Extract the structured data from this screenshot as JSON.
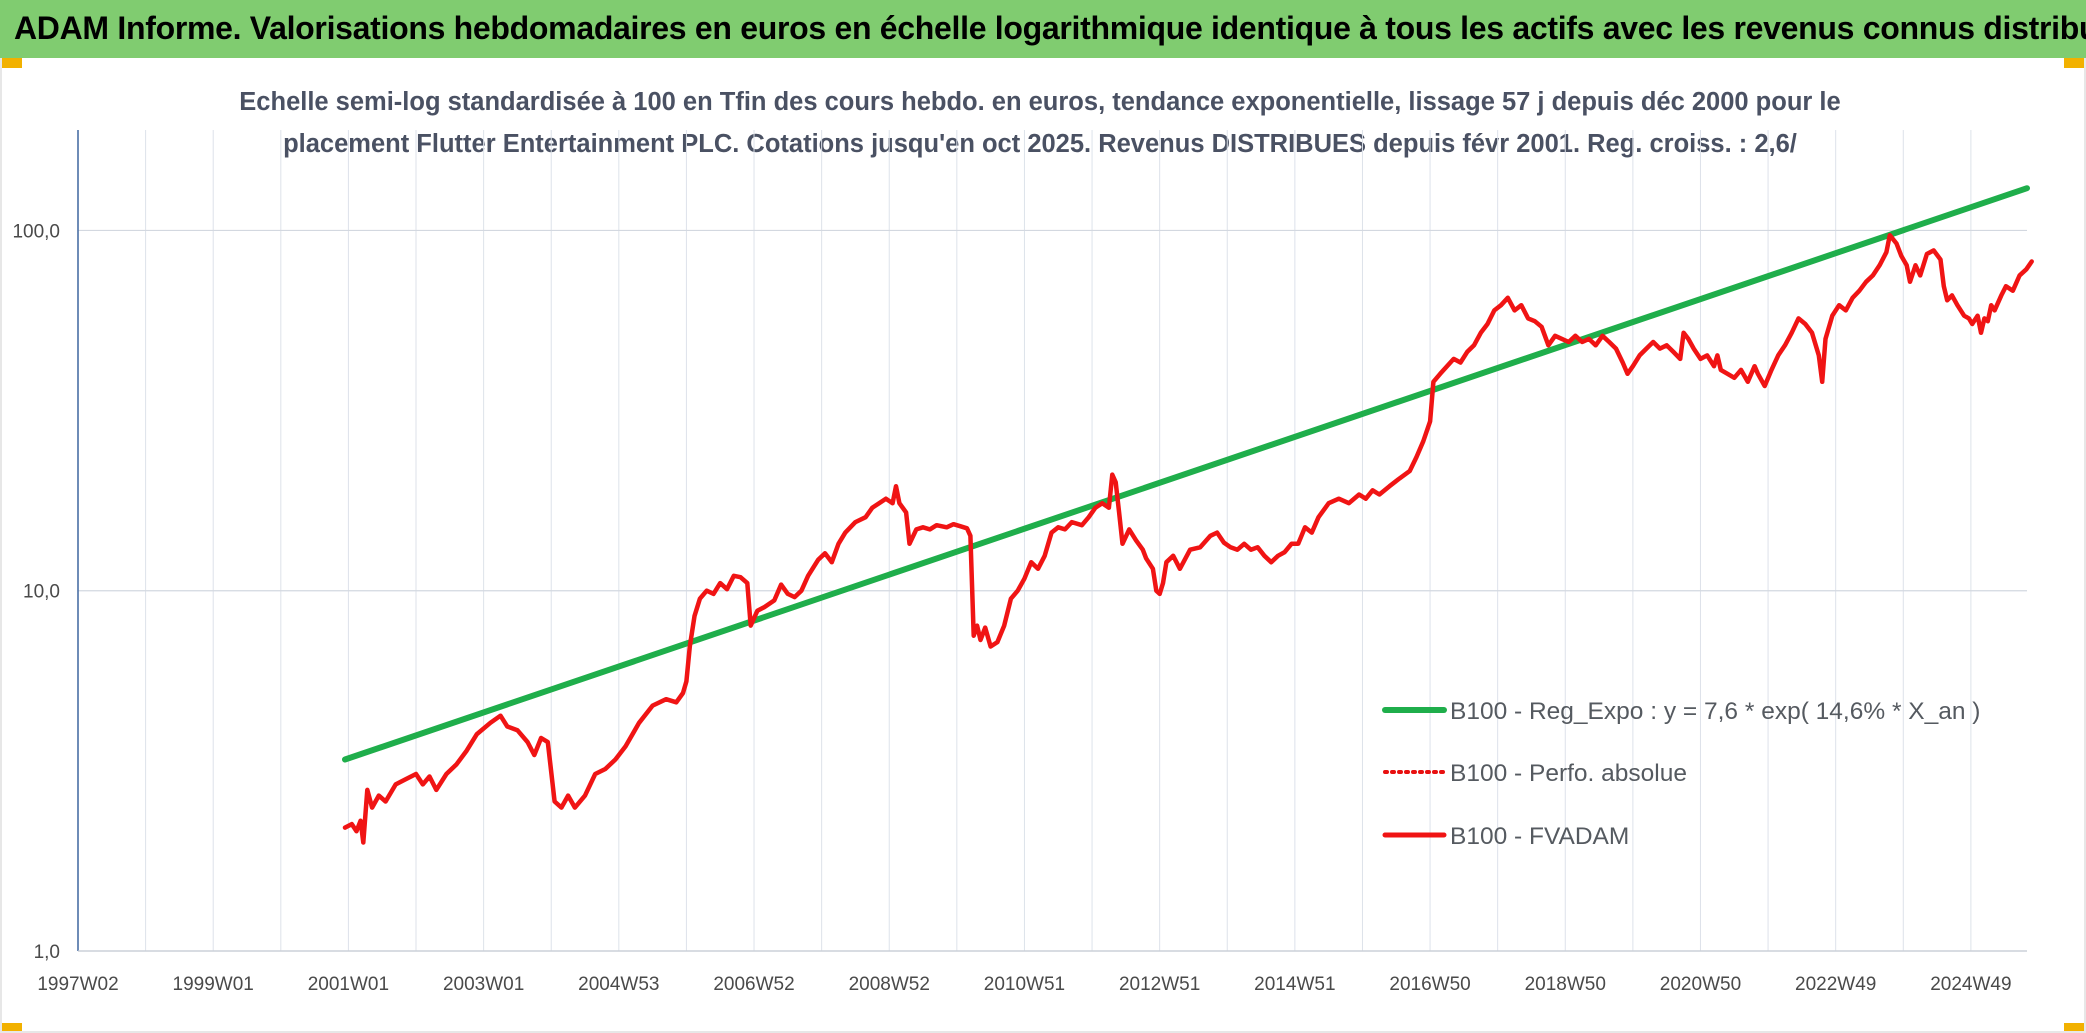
{
  "header": {
    "title": "ADAM Informe. Valorisations hebdomadaires en euros en échelle logarithmique identique à tous les actifs avec les revenus connus distribués"
  },
  "chart_data": {
    "type": "line",
    "subtitle_line1": "Echelle semi-log standardisée à 100 en Tfin des cours hebdo. en euros, tendance exponentielle, lissage 57 j depuis déc 2000 pour le",
    "subtitle_line2": "placement Flutter Entertainment PLC. Cotations jusqu'en oct 2025. Revenus DISTRIBUES depuis févr 2001. Reg. croiss. : 2,6/",
    "y_scale": "log",
    "ylim": [
      1,
      190
    ],
    "xlim": [
      1997.0,
      2025.83
    ],
    "y_ticks": [
      {
        "value": 1,
        "label": "1,0"
      },
      {
        "value": 10,
        "label": "10,0"
      },
      {
        "value": 100,
        "label": "100,0"
      }
    ],
    "x_ticks": [
      {
        "value": 1997.0,
        "label": "1997W02"
      },
      {
        "value": 1999.0,
        "label": "1999W01"
      },
      {
        "value": 2001.0,
        "label": "2001W01"
      },
      {
        "value": 2003.0,
        "label": "2003W01"
      },
      {
        "value": 2005.0,
        "label": "2004W53"
      },
      {
        "value": 2007.0,
        "label": "2006W52"
      },
      {
        "value": 2009.0,
        "label": "2008W52"
      },
      {
        "value": 2011.0,
        "label": "2010W51"
      },
      {
        "value": 2013.0,
        "label": "2012W51"
      },
      {
        "value": 2015.0,
        "label": "2014W51"
      },
      {
        "value": 2017.0,
        "label": "2016W50"
      },
      {
        "value": 2019.0,
        "label": "2018W50"
      },
      {
        "value": 2021.0,
        "label": "2020W50"
      },
      {
        "value": 2023.0,
        "label": "2022W49"
      },
      {
        "value": 2025.0,
        "label": "2024W49"
      }
    ],
    "grid": true,
    "legend_position": "bottom-right",
    "series": [
      {
        "name": "B100 - Reg_Expo : y = 7,6 * exp( 14,6% * X_an )",
        "color": "#1fae4b",
        "style": "solid",
        "points": [
          [
            2000.95,
            3.4
          ],
          [
            2025.83,
            131
          ]
        ]
      },
      {
        "name": "B100 - Perfo. absolue",
        "color": "#e81010",
        "style": "dotted",
        "points": []
      },
      {
        "name": "B100 - FVADAM",
        "color": "#f01414",
        "style": "solid",
        "points": [
          [
            2000.95,
            2.2
          ],
          [
            2001.05,
            2.25
          ],
          [
            2001.12,
            2.15
          ],
          [
            2001.18,
            2.3
          ],
          [
            2001.22,
            2.0
          ],
          [
            2001.28,
            2.8
          ],
          [
            2001.35,
            2.5
          ],
          [
            2001.45,
            2.7
          ],
          [
            2001.55,
            2.6
          ],
          [
            2001.7,
            2.9
          ],
          [
            2001.85,
            3.0
          ],
          [
            2002.0,
            3.1
          ],
          [
            2002.1,
            2.9
          ],
          [
            2002.2,
            3.05
          ],
          [
            2002.3,
            2.8
          ],
          [
            2002.45,
            3.1
          ],
          [
            2002.6,
            3.3
          ],
          [
            2002.75,
            3.6
          ],
          [
            2002.9,
            4.0
          ],
          [
            2003.1,
            4.3
          ],
          [
            2003.25,
            4.5
          ],
          [
            2003.35,
            4.2
          ],
          [
            2003.5,
            4.1
          ],
          [
            2003.65,
            3.8
          ],
          [
            2003.75,
            3.5
          ],
          [
            2003.85,
            3.9
          ],
          [
            2003.95,
            3.8
          ],
          [
            2004.05,
            2.6
          ],
          [
            2004.15,
            2.5
          ],
          [
            2004.25,
            2.7
          ],
          [
            2004.35,
            2.5
          ],
          [
            2004.5,
            2.7
          ],
          [
            2004.65,
            3.1
          ],
          [
            2004.8,
            3.2
          ],
          [
            2004.95,
            3.4
          ],
          [
            2005.1,
            3.7
          ],
          [
            2005.3,
            4.3
          ],
          [
            2005.5,
            4.8
          ],
          [
            2005.7,
            5.0
          ],
          [
            2005.85,
            4.9
          ],
          [
            2005.95,
            5.2
          ],
          [
            2006.0,
            5.6
          ],
          [
            2006.05,
            7.0
          ],
          [
            2006.12,
            8.5
          ],
          [
            2006.2,
            9.5
          ],
          [
            2006.3,
            10.0
          ],
          [
            2006.4,
            9.8
          ],
          [
            2006.5,
            10.5
          ],
          [
            2006.6,
            10.1
          ],
          [
            2006.7,
            11.0
          ],
          [
            2006.8,
            10.9
          ],
          [
            2006.9,
            10.5
          ],
          [
            2006.95,
            8.0
          ],
          [
            2007.05,
            8.8
          ],
          [
            2007.15,
            9.0
          ],
          [
            2007.3,
            9.4
          ],
          [
            2007.4,
            10.4
          ],
          [
            2007.5,
            9.8
          ],
          [
            2007.6,
            9.6
          ],
          [
            2007.7,
            10.0
          ],
          [
            2007.8,
            11.0
          ],
          [
            2007.95,
            12.2
          ],
          [
            2008.05,
            12.7
          ],
          [
            2008.15,
            12.0
          ],
          [
            2008.25,
            13.5
          ],
          [
            2008.35,
            14.5
          ],
          [
            2008.5,
            15.5
          ],
          [
            2008.65,
            16.0
          ],
          [
            2008.75,
            17.0
          ],
          [
            2008.85,
            17.5
          ],
          [
            2008.95,
            18.0
          ],
          [
            2009.05,
            17.5
          ],
          [
            2009.1,
            19.5
          ],
          [
            2009.15,
            17.5
          ],
          [
            2009.25,
            16.5
          ],
          [
            2009.3,
            13.5
          ],
          [
            2009.4,
            14.8
          ],
          [
            2009.5,
            15.0
          ],
          [
            2009.6,
            14.8
          ],
          [
            2009.7,
            15.2
          ],
          [
            2009.85,
            15.0
          ],
          [
            2009.95,
            15.3
          ],
          [
            2010.05,
            15.1
          ],
          [
            2010.15,
            14.9
          ],
          [
            2010.2,
            14.2
          ],
          [
            2010.25,
            7.5
          ],
          [
            2010.3,
            8.0
          ],
          [
            2010.35,
            7.3
          ],
          [
            2010.42,
            7.9
          ],
          [
            2010.5,
            7.0
          ],
          [
            2010.6,
            7.2
          ],
          [
            2010.7,
            8.0
          ],
          [
            2010.8,
            9.5
          ],
          [
            2010.9,
            10.0
          ],
          [
            2011.0,
            10.8
          ],
          [
            2011.1,
            12.0
          ],
          [
            2011.2,
            11.5
          ],
          [
            2011.3,
            12.5
          ],
          [
            2011.4,
            14.5
          ],
          [
            2011.5,
            15.0
          ],
          [
            2011.6,
            14.8
          ],
          [
            2011.7,
            15.5
          ],
          [
            2011.85,
            15.2
          ],
          [
            2011.95,
            16.0
          ],
          [
            2012.05,
            17.0
          ],
          [
            2012.15,
            17.5
          ],
          [
            2012.25,
            17.0
          ],
          [
            2012.3,
            21.0
          ],
          [
            2012.35,
            20.0
          ],
          [
            2012.4,
            16.5
          ],
          [
            2012.45,
            13.5
          ],
          [
            2012.55,
            14.8
          ],
          [
            2012.65,
            13.8
          ],
          [
            2012.75,
            13.0
          ],
          [
            2012.8,
            12.3
          ],
          [
            2012.9,
            11.5
          ],
          [
            2012.95,
            10.0
          ],
          [
            2013.0,
            9.8
          ],
          [
            2013.05,
            10.5
          ],
          [
            2013.1,
            12.0
          ],
          [
            2013.2,
            12.5
          ],
          [
            2013.3,
            11.5
          ],
          [
            2013.45,
            13.0
          ],
          [
            2013.6,
            13.2
          ],
          [
            2013.75,
            14.2
          ],
          [
            2013.85,
            14.5
          ],
          [
            2013.95,
            13.6
          ],
          [
            2014.05,
            13.2
          ],
          [
            2014.15,
            13.0
          ],
          [
            2014.25,
            13.5
          ],
          [
            2014.35,
            13.0
          ],
          [
            2014.45,
            13.2
          ],
          [
            2014.55,
            12.5
          ],
          [
            2014.65,
            12.0
          ],
          [
            2014.75,
            12.5
          ],
          [
            2014.85,
            12.8
          ],
          [
            2014.95,
            13.5
          ],
          [
            2015.05,
            13.5
          ],
          [
            2015.15,
            15.0
          ],
          [
            2015.25,
            14.5
          ],
          [
            2015.35,
            16.0
          ],
          [
            2015.5,
            17.5
          ],
          [
            2015.65,
            18.0
          ],
          [
            2015.8,
            17.5
          ],
          [
            2015.95,
            18.5
          ],
          [
            2016.05,
            18.0
          ],
          [
            2016.15,
            19.0
          ],
          [
            2016.25,
            18.5
          ],
          [
            2016.4,
            19.5
          ],
          [
            2016.55,
            20.5
          ],
          [
            2016.7,
            21.5
          ],
          [
            2016.8,
            23.5
          ],
          [
            2016.9,
            26.0
          ],
          [
            2017.0,
            29.5
          ],
          [
            2017.05,
            38.0
          ],
          [
            2017.15,
            40.0
          ],
          [
            2017.25,
            42.0
          ],
          [
            2017.35,
            44.0
          ],
          [
            2017.45,
            43.0
          ],
          [
            2017.55,
            46.0
          ],
          [
            2017.65,
            48.0
          ],
          [
            2017.75,
            52.0
          ],
          [
            2017.85,
            55.0
          ],
          [
            2017.95,
            60.0
          ],
          [
            2018.05,
            62.0
          ],
          [
            2018.15,
            65.0
          ],
          [
            2018.25,
            60.0
          ],
          [
            2018.35,
            62.0
          ],
          [
            2018.45,
            57.0
          ],
          [
            2018.55,
            56.0
          ],
          [
            2018.65,
            54.0
          ],
          [
            2018.75,
            48.0
          ],
          [
            2018.85,
            51.0
          ],
          [
            2018.95,
            50.0
          ],
          [
            2019.05,
            49.0
          ],
          [
            2019.15,
            51.0
          ],
          [
            2019.25,
            49.0
          ],
          [
            2019.35,
            50.0
          ],
          [
            2019.45,
            48.0
          ],
          [
            2019.55,
            51.0
          ],
          [
            2019.65,
            49.0
          ],
          [
            2019.75,
            47.0
          ],
          [
            2019.85,
            43.0
          ],
          [
            2019.92,
            40.0
          ],
          [
            2020.0,
            42.0
          ],
          [
            2020.1,
            45.0
          ],
          [
            2020.2,
            47.0
          ],
          [
            2020.3,
            49.0
          ],
          [
            2020.4,
            47.0
          ],
          [
            2020.5,
            48.0
          ],
          [
            2020.6,
            46.0
          ],
          [
            2020.7,
            44.0
          ],
          [
            2020.75,
            52.0
          ],
          [
            2020.82,
            50.0
          ],
          [
            2020.9,
            47.0
          ],
          [
            2021.0,
            44.0
          ],
          [
            2021.1,
            45.0
          ],
          [
            2021.2,
            42.0
          ],
          [
            2021.25,
            45.0
          ],
          [
            2021.3,
            41.0
          ],
          [
            2021.4,
            40.0
          ],
          [
            2021.5,
            39.0
          ],
          [
            2021.6,
            41.0
          ],
          [
            2021.7,
            38.0
          ],
          [
            2021.8,
            42.0
          ],
          [
            2021.85,
            40.0
          ],
          [
            2021.95,
            37.0
          ],
          [
            2022.05,
            41.0
          ],
          [
            2022.15,
            45.0
          ],
          [
            2022.25,
            48.0
          ],
          [
            2022.35,
            52.0
          ],
          [
            2022.45,
            57.0
          ],
          [
            2022.55,
            55.0
          ],
          [
            2022.65,
            52.0
          ],
          [
            2022.75,
            45.0
          ],
          [
            2022.8,
            38.0
          ],
          [
            2022.85,
            50.0
          ],
          [
            2022.95,
            58.0
          ],
          [
            2023.05,
            62.0
          ],
          [
            2023.15,
            60.0
          ],
          [
            2023.25,
            65.0
          ],
          [
            2023.35,
            68.0
          ],
          [
            2023.45,
            72.0
          ],
          [
            2023.55,
            75.0
          ],
          [
            2023.65,
            80.0
          ],
          [
            2023.75,
            87.0
          ],
          [
            2023.8,
            97.0
          ],
          [
            2023.9,
            92.0
          ],
          [
            2023.97,
            85.0
          ],
          [
            2024.05,
            80.0
          ],
          [
            2024.1,
            72.0
          ],
          [
            2024.18,
            80.0
          ],
          [
            2024.25,
            75.0
          ],
          [
            2024.35,
            86.0
          ],
          [
            2024.45,
            88.0
          ],
          [
            2024.55,
            83.0
          ],
          [
            2024.6,
            70.0
          ],
          [
            2024.65,
            64.0
          ],
          [
            2024.72,
            66.0
          ],
          [
            2024.8,
            62.0
          ],
          [
            2024.9,
            58.0
          ],
          [
            2024.97,
            57.0
          ],
          [
            2025.02,
            55.0
          ],
          [
            2025.1,
            58.0
          ],
          [
            2025.15,
            52.0
          ],
          [
            2025.2,
            57.0
          ],
          [
            2025.25,
            56.0
          ],
          [
            2025.3,
            62.0
          ],
          [
            2025.35,
            60.0
          ],
          [
            2025.45,
            66.0
          ],
          [
            2025.52,
            70.0
          ],
          [
            2025.62,
            68.0
          ],
          [
            2025.72,
            75.0
          ],
          [
            2025.82,
            78.0
          ],
          [
            2025.9,
            82.0
          ]
        ]
      }
    ]
  }
}
